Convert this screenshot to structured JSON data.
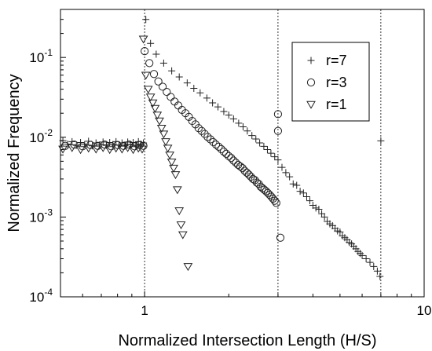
{
  "chart_data": {
    "type": "scatter",
    "title": "",
    "xlabel": "Normalized Intersection Length (H/S)",
    "ylabel": "Normalized Frequency",
    "x_scale": "log",
    "y_scale": "log",
    "xlim": [
      0.5,
      10
    ],
    "ylim": [
      0.0001,
      0.4
    ],
    "x_ticks": [
      {
        "value": 1,
        "label": "1"
      },
      {
        "value": 10,
        "label": "10"
      }
    ],
    "y_ticks": [
      {
        "value": 0.0001,
        "base": "10",
        "exp": "-4"
      },
      {
        "value": 0.001,
        "base": "10",
        "exp": "-3"
      },
      {
        "value": 0.01,
        "base": "10",
        "exp": "-2"
      },
      {
        "value": 0.1,
        "base": "10",
        "exp": "-1"
      }
    ],
    "reference_lines_x": [
      1,
      3,
      7
    ],
    "grid": false,
    "legend_position": "top-right",
    "series": [
      {
        "name": "r=7",
        "marker": "plus",
        "points": [
          [
            0.51,
            0.0091
          ],
          [
            0.53,
            0.0082
          ],
          [
            0.55,
            0.0088
          ],
          [
            0.57,
            0.0079
          ],
          [
            0.59,
            0.0086
          ],
          [
            0.61,
            0.0081
          ],
          [
            0.63,
            0.0089
          ],
          [
            0.65,
            0.0078
          ],
          [
            0.67,
            0.0085
          ],
          [
            0.69,
            0.008
          ],
          [
            0.71,
            0.0087
          ],
          [
            0.73,
            0.0079
          ],
          [
            0.75,
            0.0086
          ],
          [
            0.77,
            0.0081
          ],
          [
            0.79,
            0.0088
          ],
          [
            0.81,
            0.008
          ],
          [
            0.83,
            0.0085
          ],
          [
            0.85,
            0.0078
          ],
          [
            0.87,
            0.0087
          ],
          [
            0.89,
            0.0081
          ],
          [
            0.91,
            0.0086
          ],
          [
            0.93,
            0.0079
          ],
          [
            0.95,
            0.0088
          ],
          [
            0.97,
            0.0082
          ],
          [
            0.99,
            0.0085
          ],
          [
            1.01,
            0.3
          ],
          [
            1.05,
            0.15
          ],
          [
            1.1,
            0.11
          ],
          [
            1.17,
            0.085
          ],
          [
            1.25,
            0.068
          ],
          [
            1.33,
            0.057
          ],
          [
            1.42,
            0.048
          ],
          [
            1.5,
            0.041
          ],
          [
            1.58,
            0.036
          ],
          [
            1.67,
            0.031
          ],
          [
            1.75,
            0.027
          ],
          [
            1.83,
            0.024
          ],
          [
            1.92,
            0.021
          ],
          [
            2.0,
            0.019
          ],
          [
            2.08,
            0.017
          ],
          [
            2.17,
            0.015
          ],
          [
            2.25,
            0.0135
          ],
          [
            2.33,
            0.012
          ],
          [
            2.42,
            0.0105
          ],
          [
            2.5,
            0.0095
          ],
          [
            2.58,
            0.0085
          ],
          [
            2.67,
            0.0077
          ],
          [
            2.75,
            0.007
          ],
          [
            2.83,
            0.0063
          ],
          [
            2.92,
            0.0057
          ],
          [
            3.0,
            0.0052
          ],
          [
            3.1,
            0.0042
          ],
          [
            3.2,
            0.0036
          ],
          [
            3.3,
            0.0032
          ],
          [
            3.4,
            0.0026
          ],
          [
            3.5,
            0.0025
          ],
          [
            3.6,
            0.0021
          ],
          [
            3.7,
            0.002
          ],
          [
            3.8,
            0.0018
          ],
          [
            3.9,
            0.0016
          ],
          [
            4.0,
            0.0014
          ],
          [
            4.1,
            0.0013
          ],
          [
            4.2,
            0.00125
          ],
          [
            4.3,
            0.0011
          ],
          [
            4.4,
            0.001
          ],
          [
            4.5,
            0.00088
          ],
          [
            4.6,
            0.00082
          ],
          [
            4.7,
            0.00078
          ],
          [
            4.8,
            0.00072
          ],
          [
            4.9,
            0.00067
          ],
          [
            5.0,
            0.00065
          ],
          [
            5.1,
            0.00058
          ],
          [
            5.2,
            0.00055
          ],
          [
            5.3,
            0.00052
          ],
          [
            5.4,
            0.00048
          ],
          [
            5.5,
            0.00046
          ],
          [
            5.6,
            0.00043
          ],
          [
            5.7,
            0.0004
          ],
          [
            5.8,
            0.00037
          ],
          [
            5.9,
            0.00035
          ],
          [
            6.0,
            0.00033
          ],
          [
            6.2,
            0.0003
          ],
          [
            6.4,
            0.00027
          ],
          [
            6.6,
            0.00024
          ],
          [
            6.8,
            0.00021
          ],
          [
            6.95,
            0.00018
          ],
          [
            7.0,
            0.009
          ]
        ]
      },
      {
        "name": "r=3",
        "marker": "circle",
        "points": [
          [
            0.52,
            0.0078
          ],
          [
            0.56,
            0.0081
          ],
          [
            0.6,
            0.0077
          ],
          [
            0.64,
            0.008
          ],
          [
            0.68,
            0.0078
          ],
          [
            0.72,
            0.0081
          ],
          [
            0.76,
            0.0077
          ],
          [
            0.8,
            0.008
          ],
          [
            0.84,
            0.0078
          ],
          [
            0.88,
            0.0081
          ],
          [
            0.92,
            0.0077
          ],
          [
            0.96,
            0.008
          ],
          [
            0.99,
            0.0078
          ],
          [
            1.0,
            0.12
          ],
          [
            1.04,
            0.085
          ],
          [
            1.08,
            0.062
          ],
          [
            1.12,
            0.05
          ],
          [
            1.16,
            0.043
          ],
          [
            1.2,
            0.037
          ],
          [
            1.24,
            0.032
          ],
          [
            1.28,
            0.028
          ],
          [
            1.32,
            0.025
          ],
          [
            1.36,
            0.022
          ],
          [
            1.4,
            0.02
          ],
          [
            1.44,
            0.018
          ],
          [
            1.48,
            0.016
          ],
          [
            1.52,
            0.0145
          ],
          [
            1.56,
            0.013
          ],
          [
            1.6,
            0.012
          ],
          [
            1.64,
            0.011
          ],
          [
            1.68,
            0.0101
          ],
          [
            1.72,
            0.0094
          ],
          [
            1.76,
            0.0087
          ],
          [
            1.8,
            0.0081
          ],
          [
            1.84,
            0.0076
          ],
          [
            1.88,
            0.0071
          ],
          [
            1.92,
            0.0066
          ],
          [
            1.96,
            0.0062
          ],
          [
            2.0,
            0.0058
          ],
          [
            2.04,
            0.0055
          ],
          [
            2.08,
            0.0051
          ],
          [
            2.12,
            0.0048
          ],
          [
            2.16,
            0.0045
          ],
          [
            2.2,
            0.0043
          ],
          [
            2.24,
            0.0041
          ],
          [
            2.28,
            0.0038
          ],
          [
            2.32,
            0.0036
          ],
          [
            2.36,
            0.0034
          ],
          [
            2.4,
            0.0032
          ],
          [
            2.44,
            0.003
          ],
          [
            2.48,
            0.0029
          ],
          [
            2.52,
            0.0027
          ],
          [
            2.56,
            0.0026
          ],
          [
            2.6,
            0.0024
          ],
          [
            2.64,
            0.0023
          ],
          [
            2.68,
            0.0022
          ],
          [
            2.72,
            0.0021
          ],
          [
            2.76,
            0.002
          ],
          [
            2.8,
            0.0019
          ],
          [
            2.84,
            0.0018
          ],
          [
            2.88,
            0.0017
          ],
          [
            2.92,
            0.0016
          ],
          [
            2.96,
            0.0015
          ],
          [
            3.0,
            0.0195
          ],
          [
            3.0,
            0.012
          ],
          [
            3.06,
            0.00055
          ]
        ]
      },
      {
        "name": "r=1",
        "marker": "triangle-down",
        "points": [
          [
            0.51,
            0.0071
          ],
          [
            0.55,
            0.0074
          ],
          [
            0.59,
            0.007
          ],
          [
            0.63,
            0.0073
          ],
          [
            0.67,
            0.0071
          ],
          [
            0.71,
            0.0074
          ],
          [
            0.75,
            0.007
          ],
          [
            0.79,
            0.0073
          ],
          [
            0.83,
            0.0071
          ],
          [
            0.87,
            0.0074
          ],
          [
            0.91,
            0.007
          ],
          [
            0.95,
            0.0073
          ],
          [
            0.98,
            0.0071
          ],
          [
            0.99,
            0.17
          ],
          [
            1.01,
            0.06
          ],
          [
            1.03,
            0.04
          ],
          [
            1.05,
            0.032
          ],
          [
            1.07,
            0.027
          ],
          [
            1.09,
            0.023
          ],
          [
            1.11,
            0.019
          ],
          [
            1.13,
            0.016
          ],
          [
            1.15,
            0.013
          ],
          [
            1.17,
            0.011
          ],
          [
            1.19,
            0.0088
          ],
          [
            1.21,
            0.0073
          ],
          [
            1.23,
            0.006
          ],
          [
            1.25,
            0.0049
          ],
          [
            1.27,
            0.0041
          ],
          [
            1.29,
            0.0034
          ],
          [
            1.31,
            0.0022
          ],
          [
            1.33,
            0.0012
          ],
          [
            1.35,
            0.0008
          ],
          [
            1.37,
            0.0006
          ],
          [
            1.43,
            0.00024
          ]
        ]
      }
    ]
  }
}
